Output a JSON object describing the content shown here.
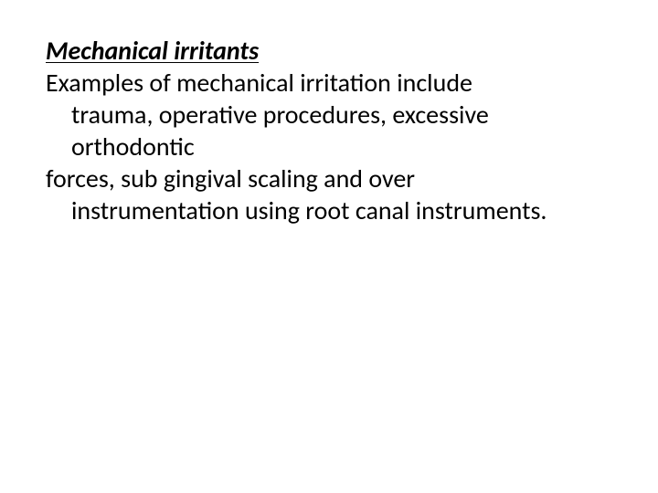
{
  "document": {
    "text_color": "#000000",
    "background_color": "#ffffff",
    "font_family": "Calibri",
    "heading": {
      "text": "Mechanical irritants",
      "font_size_pt": 28,
      "italic": true,
      "bold": true,
      "underline": true
    },
    "body": {
      "font_size_pt": 28,
      "line1_flush": "Examples of mechanical irritation include",
      "line2_indent": "trauma, operative procedures, excessive",
      "line3_indent": "orthodontic",
      "line4_flush": "forces, sub gingival scaling and over",
      "line5_indent": "instrumentation using root canal instruments."
    }
  }
}
